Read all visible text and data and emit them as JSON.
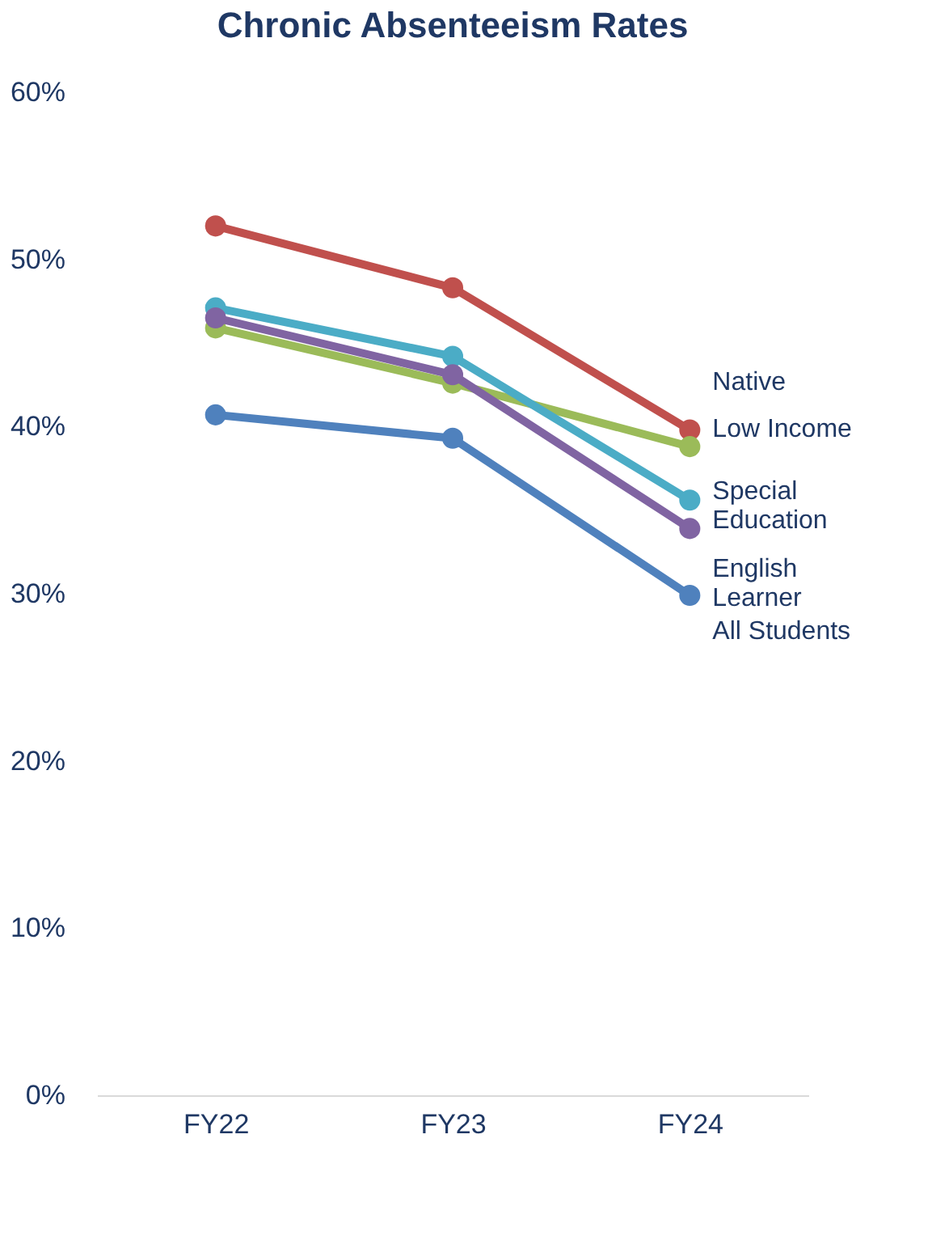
{
  "chart_data": {
    "type": "line",
    "title": "Chronic Absenteeism Rates",
    "categories": [
      "FY22",
      "FY23",
      "FY24"
    ],
    "series": [
      {
        "name": "Native",
        "color": "#c0504d",
        "values": [
          52.0,
          48.3,
          39.8
        ]
      },
      {
        "name": "Low Income",
        "color": "#9bbb59",
        "values": [
          45.9,
          42.6,
          38.8
        ]
      },
      {
        "name": "Special Education",
        "color": "#4bacc6",
        "values": [
          47.1,
          44.2,
          35.6
        ]
      },
      {
        "name": "English Learner",
        "color": "#8064a2",
        "values": [
          46.5,
          43.1,
          33.9
        ]
      },
      {
        "name": "All Students",
        "color": "#4f81bd",
        "values": [
          40.7,
          39.3,
          29.9
        ]
      }
    ],
    "ylim": [
      0,
      60
    ],
    "yticks": [
      {
        "value": 0,
        "label": "0%"
      },
      {
        "value": 10,
        "label": "10%"
      },
      {
        "value": 20,
        "label": "20%"
      },
      {
        "value": 30,
        "label": "30%"
      },
      {
        "value": 40,
        "label": "40%"
      },
      {
        "value": 50,
        "label": "50%"
      },
      {
        "value": 60,
        "label": "60%"
      }
    ],
    "grid": false,
    "legend": false,
    "marker": "circle",
    "line_style": "solid"
  }
}
